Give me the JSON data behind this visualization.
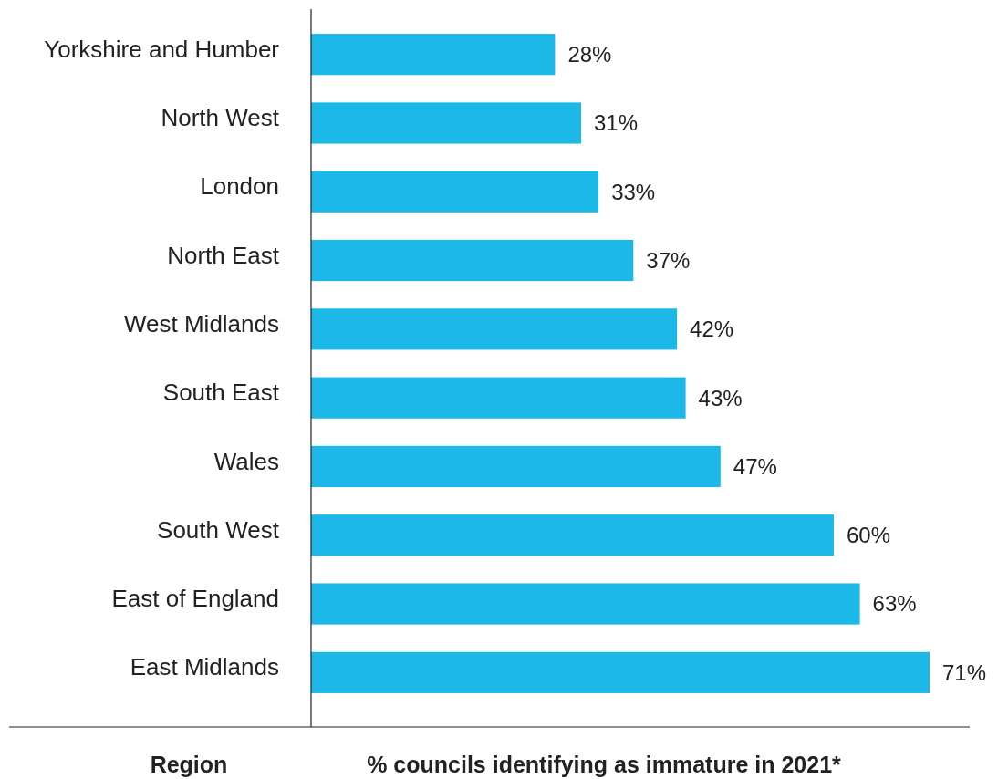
{
  "chart_data": {
    "type": "bar",
    "orientation": "horizontal",
    "ylabel": "Region",
    "xlabel": "% councils identifying as immature in 2021*",
    "categories": [
      "Yorkshire and Humber",
      "North West",
      "London",
      "North East",
      "West Midlands",
      "South East",
      "Wales",
      "South West",
      "East of England",
      "East Midlands"
    ],
    "values": [
      28,
      31,
      33,
      37,
      42,
      43,
      47,
      60,
      63,
      71
    ],
    "value_labels": [
      "28%",
      "31%",
      "33%",
      "37%",
      "42%",
      "43%",
      "47%",
      "60%",
      "63%",
      "71%"
    ],
    "color": "#1cb8e8"
  }
}
